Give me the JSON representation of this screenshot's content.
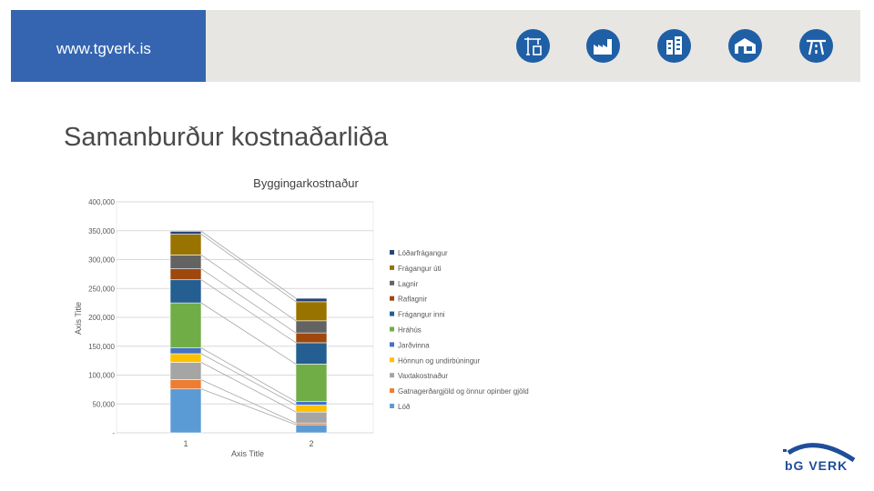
{
  "header": {
    "url": "www.tgverk.is",
    "icons": [
      "crane-icon",
      "factory-icon",
      "office-building-icon",
      "warehouse-icon",
      "road-icon"
    ]
  },
  "slide_title": "Samanburður kostnaðarliða",
  "logo_text": "bG VERK",
  "chart_data": {
    "type": "bar",
    "stacked": true,
    "title": "Byggingarkostnaður",
    "xlabel": "Axis Title",
    "ylabel": "Axis Title",
    "ylim": [
      0,
      400000
    ],
    "ytick_labels": [
      "-",
      "50,000",
      "100,000",
      "150,000",
      "200,000",
      "250,000",
      "300,000",
      "350,000",
      "400,000"
    ],
    "categories": [
      "1",
      "2"
    ],
    "gridlines": true,
    "legend_position": "right",
    "series_lines": true,
    "series": [
      {
        "name": "Lóð",
        "color": "#5b9bd5",
        "values": [
          76000,
          14000
        ]
      },
      {
        "name": "Gatnagerðargjöld og önnur opinber gjöld",
        "color": "#ed7d31",
        "values": [
          16000,
          3000
        ]
      },
      {
        "name": "Vaxtakostnaður",
        "color": "#a5a5a5",
        "values": [
          30000,
          19000
        ]
      },
      {
        "name": "Hönnun og undirbúningur",
        "color": "#ffc000",
        "values": [
          15000,
          12000
        ]
      },
      {
        "name": "Jarðvinna",
        "color": "#4472c4",
        "values": [
          10000,
          6000
        ]
      },
      {
        "name": "Hráhús",
        "color": "#70ad47",
        "values": [
          78000,
          65000
        ]
      },
      {
        "name": "Frágangur inni",
        "color": "#255e91",
        "values": [
          40000,
          37000
        ]
      },
      {
        "name": "Raflagnir",
        "color": "#9e480e",
        "values": [
          19000,
          17000
        ]
      },
      {
        "name": "Lagnir",
        "color": "#636363",
        "values": [
          24000,
          21000
        ]
      },
      {
        "name": "Frágangur úti",
        "color": "#997300",
        "values": [
          36000,
          33000
        ]
      },
      {
        "name": "Lóðarfrágangur",
        "color": "#264478",
        "values": [
          5000,
          6000
        ]
      }
    ]
  }
}
